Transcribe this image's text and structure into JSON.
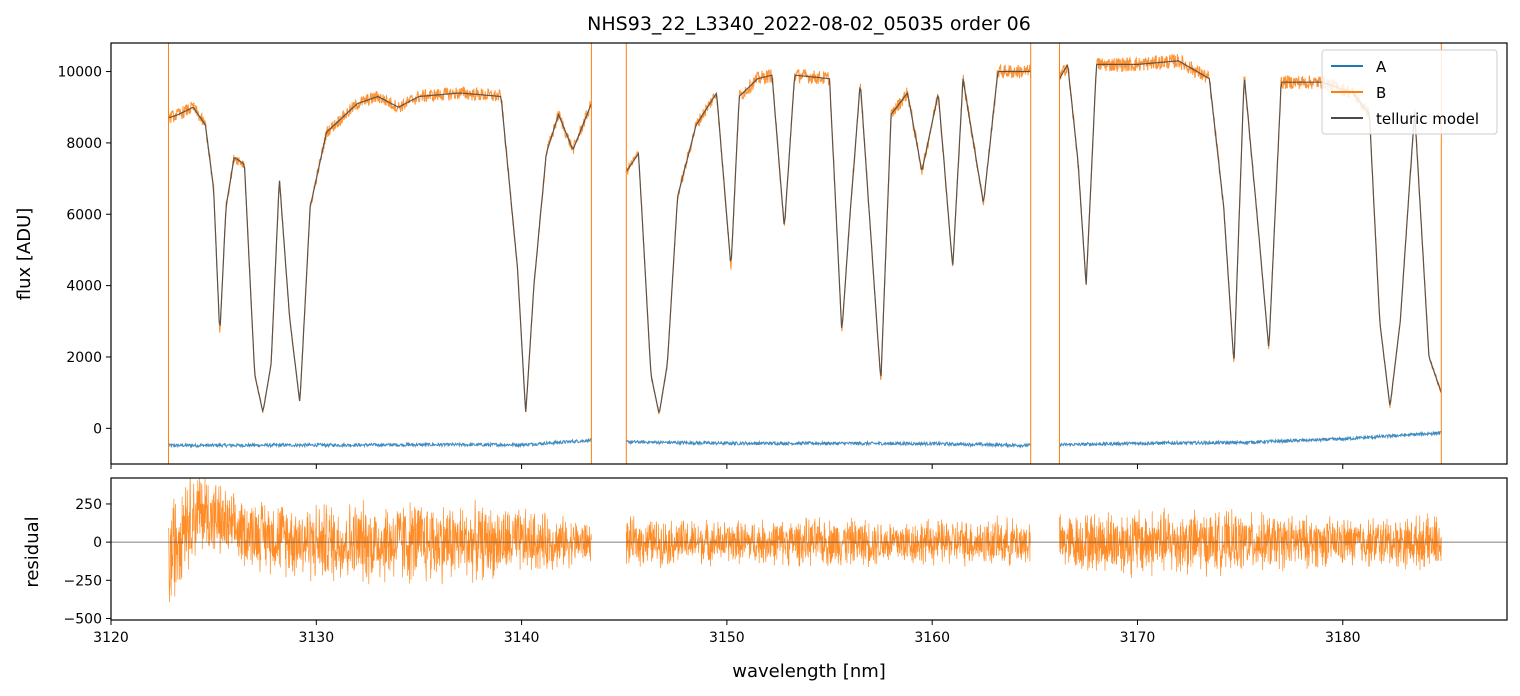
{
  "chart_data": [
    {
      "type": "line",
      "title": "NHS93_22_L3340_2022-08-02_05035  order 06",
      "ylabel": "flux [ADU]",
      "xlim": [
        3120,
        3188
      ],
      "ylim": [
        -1000,
        10800
      ],
      "yticks": [
        0,
        2000,
        4000,
        6000,
        8000,
        10000
      ],
      "legend_position": "top-right",
      "grid": false,
      "segments_nm": [
        [
          3122.8,
          3143.4
        ],
        [
          3145.1,
          3164.8
        ],
        [
          3166.2,
          3184.8
        ]
      ],
      "series": [
        {
          "name": "A",
          "color": "#1f77b4",
          "points": [
            [
              3122.8,
              -480
            ],
            [
              3130,
              -470
            ],
            [
              3135,
              -460
            ],
            [
              3140,
              -460
            ],
            [
              3143.3,
              -340
            ],
            [
              3145.1,
              -380
            ],
            [
              3150,
              -420
            ],
            [
              3155,
              -420
            ],
            [
              3160,
              -430
            ],
            [
              3164.7,
              -480
            ],
            [
              3166.3,
              -460
            ],
            [
              3170,
              -420
            ],
            [
              3175,
              -400
            ],
            [
              3180,
              -300
            ],
            [
              3184.7,
              -130
            ]
          ]
        },
        {
          "name": "B",
          "color": "#ff7f0e",
          "points": [
            [
              3122.8,
              8700
            ],
            [
              3123.3,
              8800
            ],
            [
              3124,
              9000
            ],
            [
              3124.6,
              8500
            ],
            [
              3125,
              6700
            ],
            [
              3125.3,
              2600
            ],
            [
              3125.6,
              6200
            ],
            [
              3126,
              7600
            ],
            [
              3126.5,
              7400
            ],
            [
              3127,
              1500
            ],
            [
              3127.4,
              450
            ],
            [
              3127.8,
              1800
            ],
            [
              3128.2,
              7000
            ],
            [
              3128.7,
              3100
            ],
            [
              3129.2,
              700
            ],
            [
              3129.7,
              6200
            ],
            [
              3130.5,
              8300
            ],
            [
              3132,
              9100
            ],
            [
              3133,
              9300
            ],
            [
              3134,
              9000
            ],
            [
              3135,
              9300
            ],
            [
              3137,
              9400
            ],
            [
              3139,
              9300
            ],
            [
              3139.8,
              4500
            ],
            [
              3140.2,
              400
            ],
            [
              3140.6,
              4000
            ],
            [
              3141.2,
              7700
            ],
            [
              3141.8,
              8800
            ],
            [
              3142.5,
              7800
            ],
            [
              3143.4,
              9100
            ],
            [
              3145.1,
              7200
            ],
            [
              3145.7,
              7700
            ],
            [
              3146.3,
              1500
            ],
            [
              3146.7,
              400
            ],
            [
              3147.1,
              1800
            ],
            [
              3147.6,
              6500
            ],
            [
              3148.5,
              8500
            ],
            [
              3149.5,
              9400
            ],
            [
              3150.2,
              4500
            ],
            [
              3150.6,
              9300
            ],
            [
              3151.5,
              9800
            ],
            [
              3152.2,
              9900
            ],
            [
              3152.8,
              5600
            ],
            [
              3153.3,
              9900
            ],
            [
              3155,
              9800
            ],
            [
              3155.6,
              2700
            ],
            [
              3156,
              6000
            ],
            [
              3156.5,
              9700
            ],
            [
              3157.5,
              1300
            ],
            [
              3158,
              8800
            ],
            [
              3158.8,
              9400
            ],
            [
              3159.5,
              7200
            ],
            [
              3160.3,
              9400
            ],
            [
              3161,
              4500
            ],
            [
              3161.5,
              9800
            ],
            [
              3162.5,
              6300
            ],
            [
              3163.2,
              10000
            ],
            [
              3164.8,
              10000
            ],
            [
              3166.2,
              9800
            ],
            [
              3166.6,
              10200
            ],
            [
              3167.1,
              7500
            ],
            [
              3167.5,
              4000
            ],
            [
              3168,
              10200
            ],
            [
              3170,
              10200
            ],
            [
              3172,
              10300
            ],
            [
              3173.5,
              9800
            ],
            [
              3174.2,
              6200
            ],
            [
              3174.7,
              1800
            ],
            [
              3175.2,
              9900
            ],
            [
              3175.9,
              5500
            ],
            [
              3176.4,
              2200
            ],
            [
              3177,
              9700
            ],
            [
              3179,
              9700
            ],
            [
              3180.5,
              9400
            ],
            [
              3181.3,
              8800
            ],
            [
              3181.8,
              3000
            ],
            [
              3182.3,
              600
            ],
            [
              3182.8,
              3000
            ],
            [
              3183.5,
              8900
            ],
            [
              3184.2,
              2000
            ],
            [
              3184.8,
              1000
            ]
          ]
        },
        {
          "name": "telluric model",
          "color": "#4a4a4a",
          "points": [
            [
              3122.8,
              8700
            ],
            [
              3123.3,
              8800
            ],
            [
              3124,
              9000
            ],
            [
              3124.6,
              8500
            ],
            [
              3125,
              6700
            ],
            [
              3125.3,
              2600
            ],
            [
              3125.6,
              6200
            ],
            [
              3126,
              7600
            ],
            [
              3126.5,
              7400
            ],
            [
              3127,
              1500
            ],
            [
              3127.4,
              450
            ],
            [
              3127.8,
              1800
            ],
            [
              3128.2,
              7000
            ],
            [
              3128.7,
              3100
            ],
            [
              3129.2,
              700
            ],
            [
              3129.7,
              6200
            ],
            [
              3130.5,
              8300
            ],
            [
              3132,
              9100
            ],
            [
              3133,
              9300
            ],
            [
              3134,
              9000
            ],
            [
              3135,
              9300
            ],
            [
              3137,
              9400
            ],
            [
              3139,
              9300
            ],
            [
              3139.8,
              4500
            ],
            [
              3140.2,
              400
            ],
            [
              3140.6,
              4000
            ],
            [
              3141.2,
              7700
            ],
            [
              3141.8,
              8800
            ],
            [
              3142.5,
              7800
            ],
            [
              3143.4,
              9100
            ],
            [
              3145.1,
              7200
            ],
            [
              3145.7,
              7700
            ],
            [
              3146.3,
              1500
            ],
            [
              3146.7,
              400
            ],
            [
              3147.1,
              1800
            ],
            [
              3147.6,
              6500
            ],
            [
              3148.5,
              8500
            ],
            [
              3149.5,
              9400
            ],
            [
              3150.2,
              4500
            ],
            [
              3150.6,
              9300
            ],
            [
              3151.5,
              9800
            ],
            [
              3152.2,
              9900
            ],
            [
              3152.8,
              5600
            ],
            [
              3153.3,
              9900
            ],
            [
              3155,
              9800
            ],
            [
              3155.6,
              2700
            ],
            [
              3156,
              6000
            ],
            [
              3156.5,
              9700
            ],
            [
              3157.5,
              1300
            ],
            [
              3158,
              8800
            ],
            [
              3158.8,
              9400
            ],
            [
              3159.5,
              7200
            ],
            [
              3160.3,
              9400
            ],
            [
              3161,
              4500
            ],
            [
              3161.5,
              9800
            ],
            [
              3162.5,
              6300
            ],
            [
              3163.2,
              10000
            ],
            [
              3164.8,
              10000
            ],
            [
              3166.2,
              9800
            ],
            [
              3166.6,
              10200
            ],
            [
              3167.1,
              7500
            ],
            [
              3167.5,
              4000
            ],
            [
              3168,
              10200
            ],
            [
              3170,
              10200
            ],
            [
              3172,
              10300
            ],
            [
              3173.5,
              9800
            ],
            [
              3174.2,
              6200
            ],
            [
              3174.7,
              1800
            ],
            [
              3175.2,
              9900
            ],
            [
              3175.9,
              5500
            ],
            [
              3176.4,
              2200
            ],
            [
              3177,
              9700
            ],
            [
              3179,
              9700
            ],
            [
              3180.5,
              9400
            ],
            [
              3181.3,
              8800
            ],
            [
              3181.8,
              3000
            ],
            [
              3182.3,
              600
            ],
            [
              3182.8,
              3000
            ],
            [
              3183.5,
              8900
            ],
            [
              3184.2,
              2000
            ],
            [
              3184.8,
              1000
            ]
          ]
        }
      ]
    },
    {
      "type": "line",
      "xlabel": "wavelength [nm]",
      "ylabel": "residual",
      "xlim": [
        3120,
        3188
      ],
      "ylim": [
        -510,
        420
      ],
      "xticks": [
        3120,
        3130,
        3140,
        3150,
        3160,
        3170,
        3180
      ],
      "yticks": [
        -500,
        -250,
        0,
        250
      ],
      "zero_line": true,
      "segments_nm": [
        [
          3122.8,
          3143.4
        ],
        [
          3145.1,
          3164.8
        ],
        [
          3166.2,
          3184.8
        ]
      ],
      "series": [
        {
          "color": "#ff7f0e",
          "noise_amplitude_points": [
            [
              3122.8,
              450
            ],
            [
              3124,
              350
            ],
            [
              3126,
              250
            ],
            [
              3130,
              300
            ],
            [
              3135,
              320
            ],
            [
              3140,
              250
            ],
            [
              3143.4,
              150
            ],
            [
              3145.1,
              180
            ],
            [
              3150,
              160
            ],
            [
              3155,
              180
            ],
            [
              3160,
              170
            ],
            [
              3164.8,
              180
            ],
            [
              3166.2,
              200
            ],
            [
              3170,
              260
            ],
            [
              3175,
              220
            ],
            [
              3180,
              180
            ],
            [
              3184.8,
              200
            ]
          ],
          "mean_offset_points": [
            [
              3122.8,
              -150
            ],
            [
              3123.5,
              150
            ],
            [
              3124.5,
              200
            ],
            [
              3126,
              80
            ],
            [
              3130,
              0
            ],
            [
              3143.4,
              0
            ],
            [
              3184.8,
              0
            ]
          ]
        }
      ]
    }
  ]
}
